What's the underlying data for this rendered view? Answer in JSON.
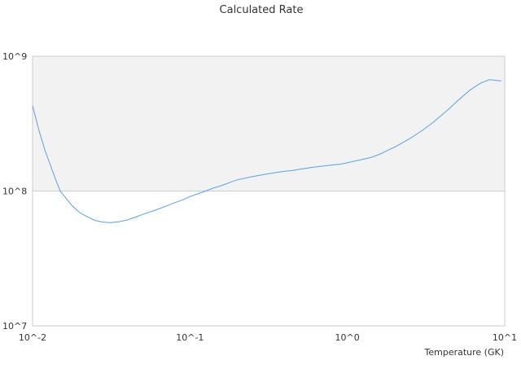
{
  "chart_data": {
    "type": "line",
    "title": "Calculated Rate",
    "xlabel": "Temperature (GK)",
    "ylabel": "",
    "x_scale": "log",
    "y_scale": "log",
    "xlim": [
      0.01,
      10
    ],
    "ylim": [
      10000000,
      1000000000
    ],
    "x_tick_labels": [
      "10^-2",
      "10^-1",
      "10^0",
      "10^1"
    ],
    "y_tick_labels": [
      "10^7",
      "10^8",
      "10^9"
    ],
    "grid": false,
    "colors": {
      "line": "#5aa0e6",
      "band": "#f2f2f2",
      "axis": "#cccccc",
      "text": "#333333"
    },
    "series": [
      {
        "x": [
          0.01,
          0.011,
          0.012,
          0.013,
          0.014,
          0.015,
          0.0166,
          0.018,
          0.02,
          0.0225,
          0.025,
          0.0275,
          0.031,
          0.035,
          0.04,
          0.045,
          0.05,
          0.06,
          0.07,
          0.08,
          0.09,
          0.1,
          0.12,
          0.14,
          0.16,
          0.18,
          0.2,
          0.25,
          0.3,
          0.35,
          0.4,
          0.45,
          0.5,
          0.6,
          0.7,
          0.8,
          0.9,
          1.0,
          1.2,
          1.4,
          1.6,
          1.8,
          2.0,
          2.5,
          3.0,
          3.5,
          4.0,
          4.5,
          5.0,
          6.0,
          7.0,
          8.0,
          9.0,
          9.5
        ],
        "y": [
          430000000,
          280000000,
          200000000,
          155000000,
          122000000,
          100000000,
          86000000,
          77000000,
          69000000,
          64000000,
          60500000,
          59000000,
          58200000,
          59000000,
          61000000,
          64000000,
          67000000,
          72000000,
          77000000,
          82000000,
          86000000,
          91000000,
          98000000,
          105000000,
          110000000,
          116000000,
          121000000,
          128000000,
          133000000,
          137000000,
          140000000,
          142000000,
          145000000,
          150000000,
          153000000,
          156000000,
          158000000,
          162000000,
          170000000,
          177000000,
          187000000,
          200000000,
          212000000,
          245000000,
          282000000,
          322000000,
          368000000,
          415000000,
          465000000,
          560000000,
          630000000,
          670000000,
          660000000,
          655000000
        ]
      }
    ]
  }
}
